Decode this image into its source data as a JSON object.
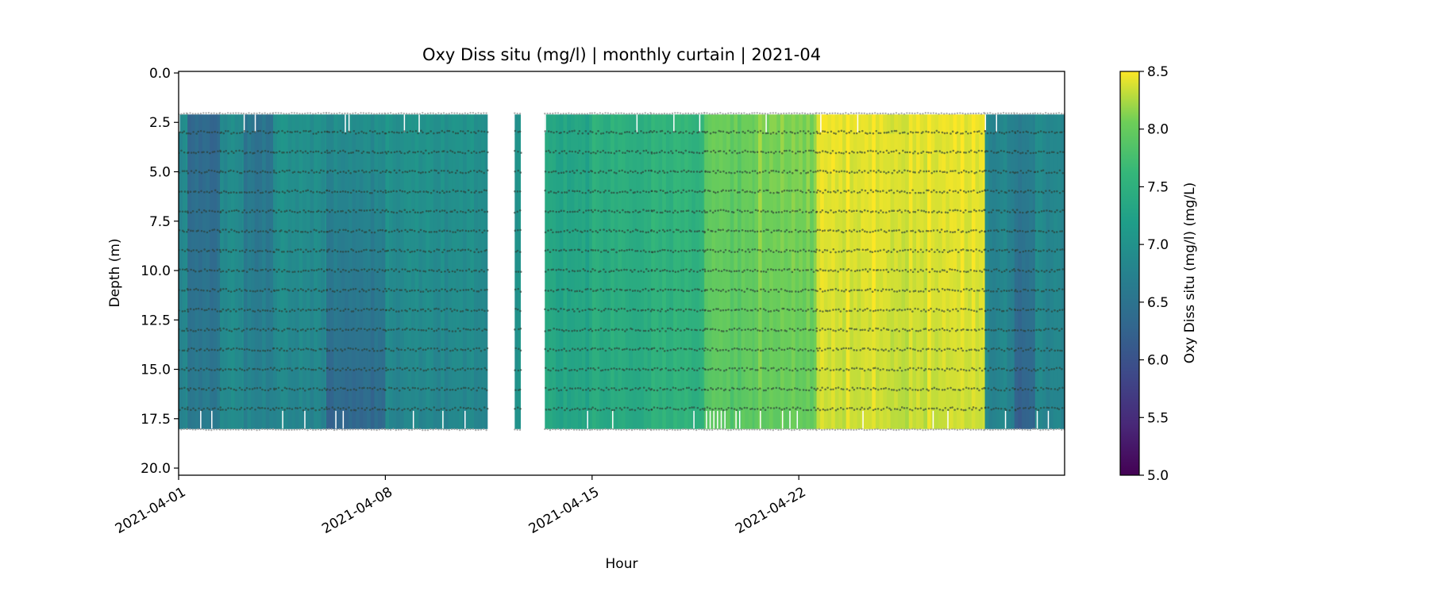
{
  "chart_data": {
    "type": "heatmap",
    "title": "Oxy Diss situ (mg/l) | monthly curtain | 2021-04",
    "xlabel": "Hour",
    "ylabel": "Depth (m)",
    "colorbar_label": "Oxy Diss situ (mg/l) (mg/L)",
    "colormap": "viridis",
    "x_unit": "days since 2021-04-01",
    "xlim": [
      0,
      30
    ],
    "ylim": [
      20.36,
      -0.08
    ],
    "y_inverted": true,
    "clim": [
      5.0,
      8.5
    ],
    "x_ticks": [
      {
        "value": 0,
        "label": "2021-04-01"
      },
      {
        "value": 7,
        "label": "2021-04-08"
      },
      {
        "value": 14,
        "label": "2021-04-15"
      },
      {
        "value": 21,
        "label": "2021-04-22"
      }
    ],
    "y_ticks": [
      {
        "value": 0,
        "label": "0.0"
      },
      {
        "value": 2.5,
        "label": "2.5"
      },
      {
        "value": 5,
        "label": "5.0"
      },
      {
        "value": 7.5,
        "label": "7.5"
      },
      {
        "value": 10,
        "label": "10.0"
      },
      {
        "value": 12.5,
        "label": "12.5"
      },
      {
        "value": 15,
        "label": "15.0"
      },
      {
        "value": 17.5,
        "label": "17.5"
      },
      {
        "value": 20,
        "label": "20.0"
      }
    ],
    "colorbar_ticks": [
      {
        "value": 5.0,
        "label": "5.0"
      },
      {
        "value": 5.5,
        "label": "5.5"
      },
      {
        "value": 6.0,
        "label": "6.0"
      },
      {
        "value": 6.5,
        "label": "6.5"
      },
      {
        "value": 7.0,
        "label": "7.0"
      },
      {
        "value": 7.5,
        "label": "7.5"
      },
      {
        "value": 8.0,
        "label": "8.0"
      },
      {
        "value": 8.5,
        "label": "8.5"
      }
    ],
    "depth_range": [
      2.1,
      18.0
    ],
    "sensor_depths": [
      3,
      4,
      5,
      6,
      7,
      8,
      9,
      10,
      11,
      12,
      13,
      14,
      15,
      16,
      17
    ],
    "boundary_depths": [
      2.05,
      18.05
    ],
    "segments": [
      {
        "start": 0.0,
        "end": 0.3,
        "top": 6.9,
        "bottom": 6.8
      },
      {
        "start": 0.3,
        "end": 1.4,
        "top": 6.3,
        "bottom": 6.6
      },
      {
        "start": 1.4,
        "end": 2.2,
        "top": 6.9,
        "bottom": 6.9
      },
      {
        "start": 2.2,
        "end": 3.2,
        "top": 6.5,
        "bottom": 6.8
      },
      {
        "start": 3.2,
        "end": 5.0,
        "top": 7.0,
        "bottom": 6.8
      },
      {
        "start": 5.0,
        "end": 7.0,
        "top": 6.95,
        "bottom": 6.3
      },
      {
        "start": 7.0,
        "end": 10.45,
        "top": 7.0,
        "bottom": 6.8
      },
      {
        "start": 11.38,
        "end": 11.57,
        "top": 7.0,
        "bottom": 7.0
      },
      {
        "start": 12.4,
        "end": 14.0,
        "top": 7.3,
        "bottom": 7.3
      },
      {
        "start": 14.0,
        "end": 16.0,
        "top": 7.5,
        "bottom": 7.4
      },
      {
        "start": 16.0,
        "end": 17.8,
        "top": 7.55,
        "bottom": 7.5
      },
      {
        "start": 17.8,
        "end": 19.5,
        "top": 8.0,
        "bottom": 7.9
      },
      {
        "start": 19.5,
        "end": 21.6,
        "top": 8.15,
        "bottom": 8.0
      },
      {
        "start": 21.6,
        "end": 27.3,
        "top": 8.45,
        "bottom": 8.35
      },
      {
        "start": 27.3,
        "end": 28.3,
        "top": 6.8,
        "bottom": 6.8
      },
      {
        "start": 28.3,
        "end": 29.0,
        "top": 6.7,
        "bottom": 6.2
      },
      {
        "start": 29.0,
        "end": 30.0,
        "top": 6.85,
        "bottom": 6.8
      }
    ]
  }
}
